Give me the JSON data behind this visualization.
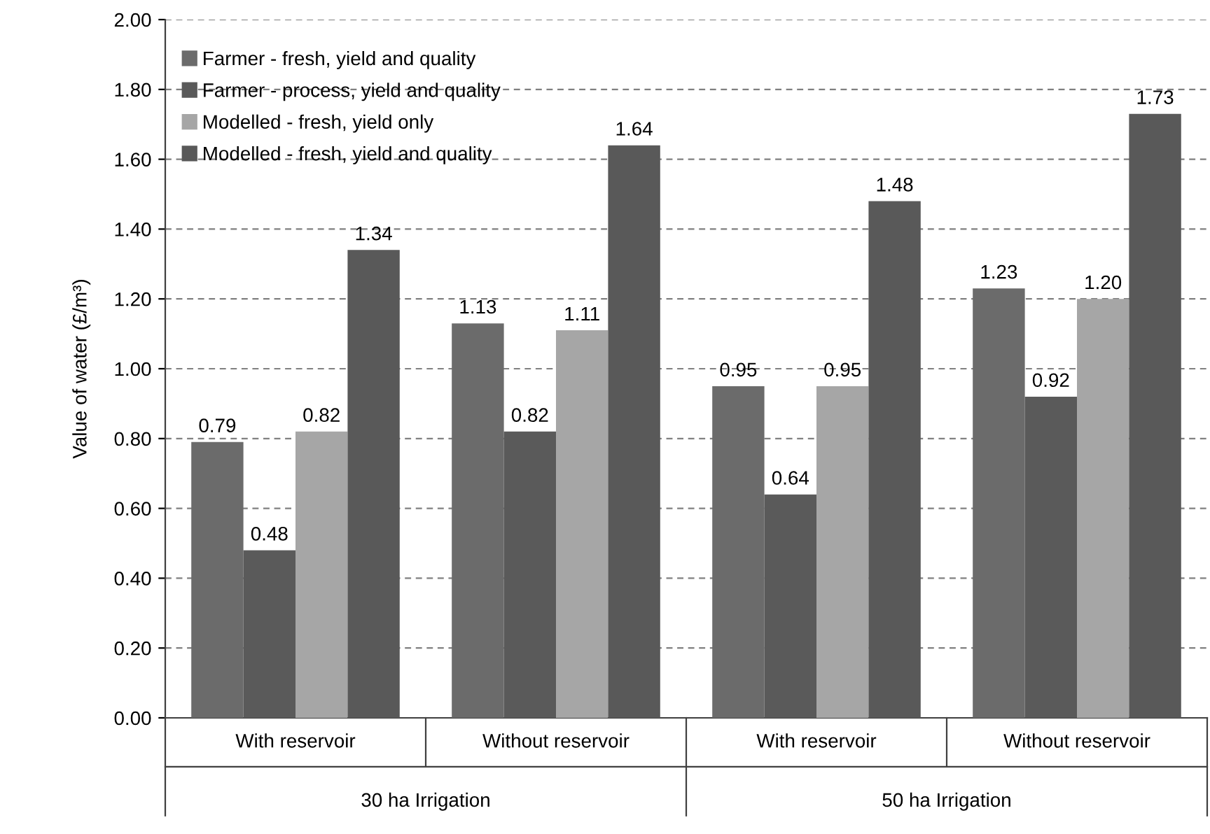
{
  "chart_data": {
    "type": "bar",
    "ylabel": "Value of water (£/m³)",
    "categories": [
      "With reservoir",
      "Without reservoir",
      "With reservoir",
      "Without reservoir"
    ],
    "series": [
      {
        "name": "Farmer - fresh, yield and quality",
        "color": "#6b6b6b",
        "values": [
          0.79,
          1.13,
          0.95,
          1.23
        ],
        "value_labels": [
          "0.79",
          "1.13",
          "0.95",
          "1.23"
        ]
      },
      {
        "name": "Farmer - process, yield and quality",
        "color": "#5a5a5a",
        "values": [
          0.48,
          0.82,
          0.64,
          0.92
        ],
        "value_labels": [
          "0.48",
          "0.82",
          "0.64",
          "0.92"
        ]
      },
      {
        "name": "Modelled - fresh, yield only",
        "color": "#a6a6a6",
        "values": [
          0.82,
          1.11,
          0.95,
          1.2
        ],
        "value_labels": [
          "0.82",
          "1.11",
          "0.95",
          "1.20"
        ]
      },
      {
        "name": "Modelled - fresh, yield and quality",
        "color": "#595959",
        "values": [
          1.34,
          1.64,
          1.48,
          1.73
        ],
        "value_labels": [
          "1.34",
          "1.64",
          "1.48",
          "1.73"
        ]
      }
    ],
    "ylim": [
      0,
      2
    ],
    "yticks": [
      {
        "value": 0,
        "label": "0.00"
      },
      {
        "value": 0.2,
        "label": "0.20"
      },
      {
        "value": 0.4,
        "label": "0.40"
      },
      {
        "value": 0.6,
        "label": "0.60"
      },
      {
        "value": 0.8,
        "label": "0.80"
      },
      {
        "value": 1.0,
        "label": "1.00"
      },
      {
        "value": 1.2,
        "label": "1.20"
      },
      {
        "value": 1.4,
        "label": "1.40"
      },
      {
        "value": 1.6,
        "label": "1.60"
      },
      {
        "value": 1.8,
        "label": "1.80"
      },
      {
        "value": 2.0,
        "label": "2.00"
      }
    ],
    "grid": "y",
    "legend": "top left",
    "annotations": [
      "30 ha Irrigation",
      "50 ha Irrigation"
    ]
  }
}
